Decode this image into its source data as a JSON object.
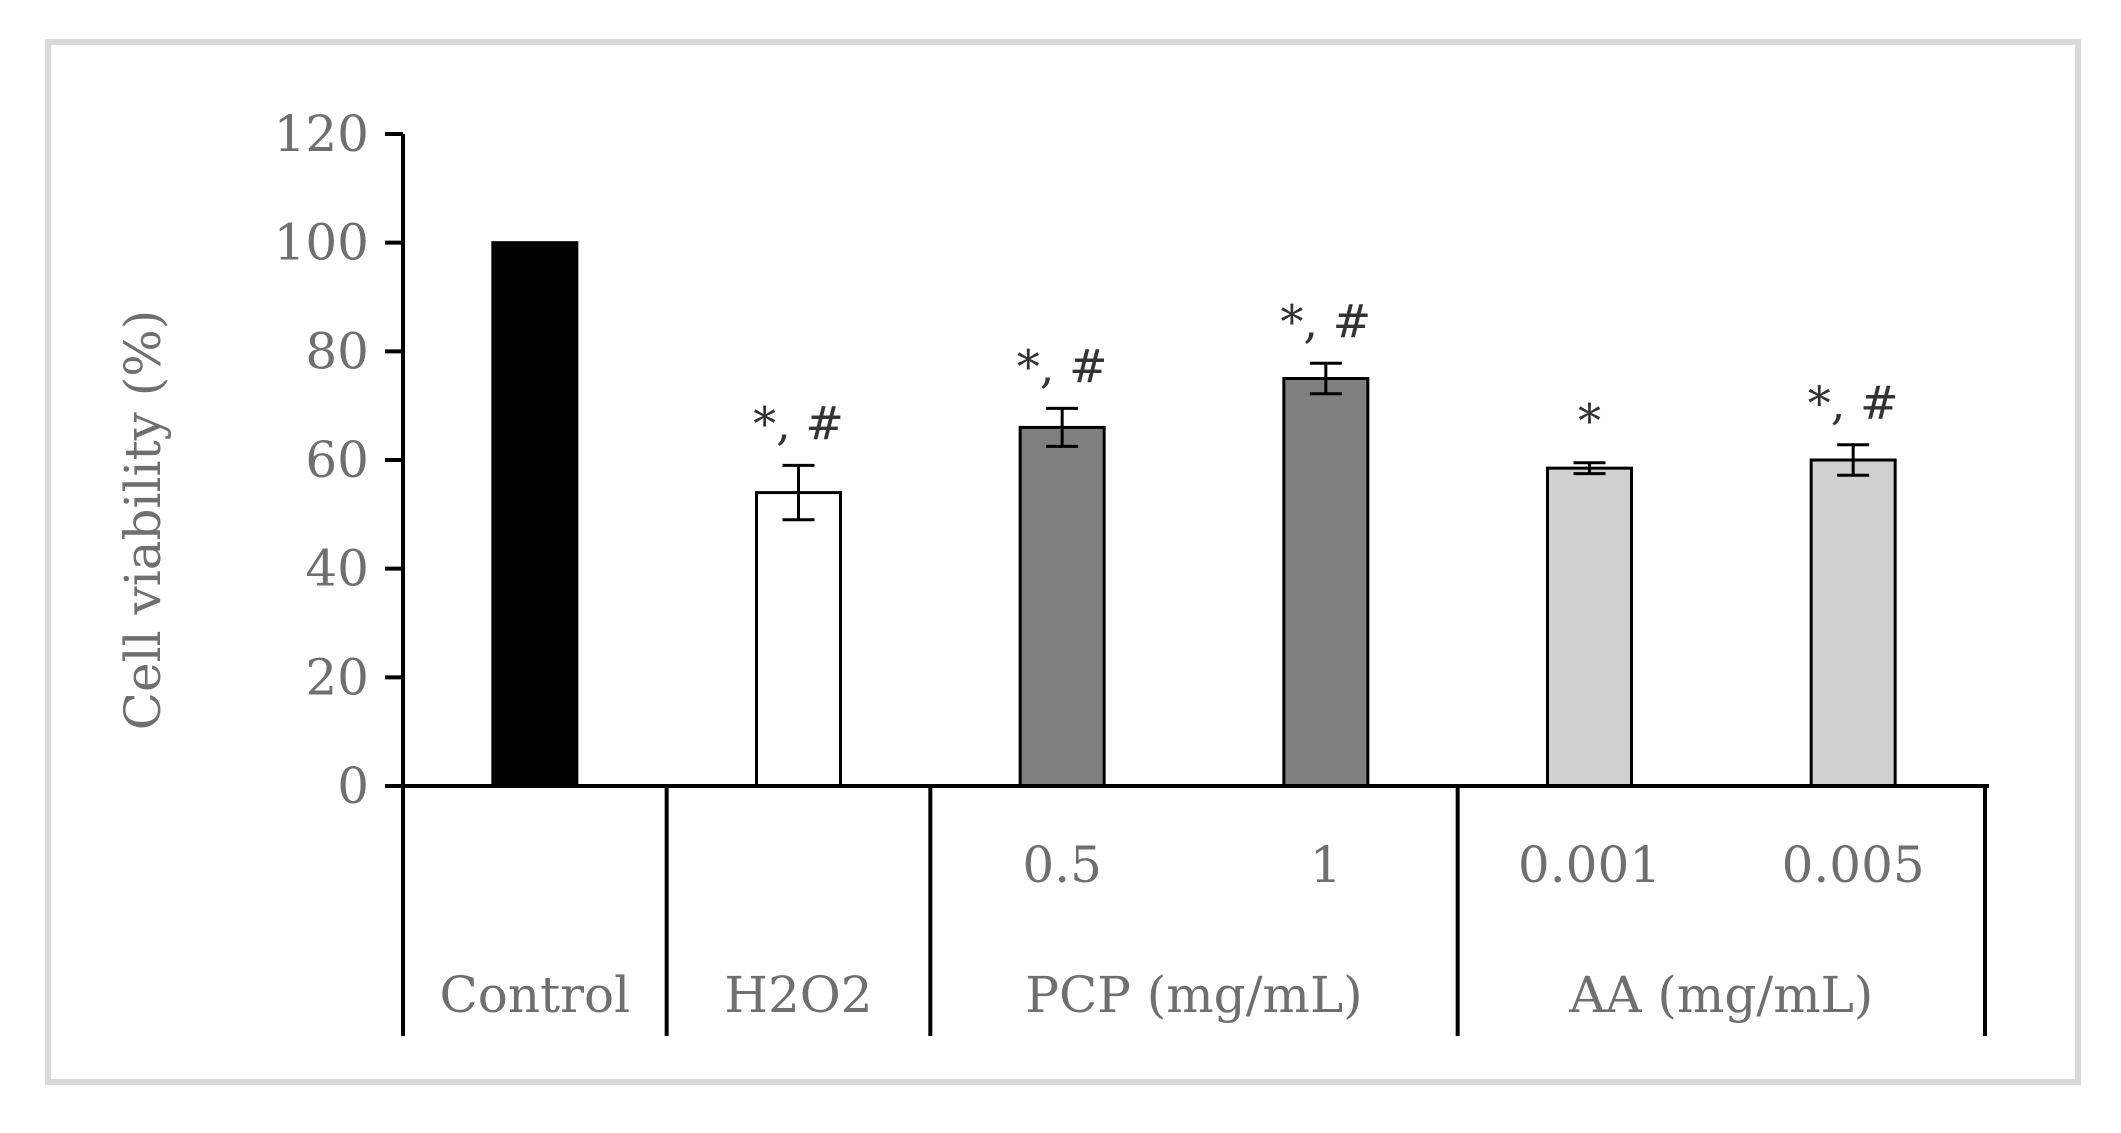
{
  "chart_data": {
    "type": "bar",
    "ylabel": "Cell viability (%)",
    "ylim": [
      0,
      120
    ],
    "yticks": [
      0,
      20,
      40,
      60,
      80,
      100,
      120
    ],
    "grid": false,
    "legend": "none",
    "bars": [
      {
        "x": "Control",
        "value": 100,
        "error": 0,
        "color": "#000000",
        "annotation": ""
      },
      {
        "x": "H2O2",
        "value": 54,
        "error": 5,
        "color": "#ffffff",
        "annotation": "*, #"
      },
      {
        "x": "0.5",
        "value": 66,
        "error": 3.5,
        "color": "#7f7f7f",
        "annotation": "*, #"
      },
      {
        "x": "1",
        "value": 75,
        "error": 2.8,
        "color": "#7f7f7f",
        "annotation": "*, #"
      },
      {
        "x": "0.001",
        "value": 58.5,
        "error": 1,
        "color": "#d0d0d0",
        "annotation": "*"
      },
      {
        "x": "0.005",
        "value": 60,
        "error": 2.8,
        "color": "#d0d0d0",
        "annotation": "*, #"
      }
    ],
    "group_labels": [
      {
        "label": "Control",
        "span": 1
      },
      {
        "label": "H2O2",
        "span": 1
      },
      {
        "label": "PCP (mg/mL)",
        "span": 2
      },
      {
        "label": "AA (mg/mL)",
        "span": 2
      }
    ]
  }
}
